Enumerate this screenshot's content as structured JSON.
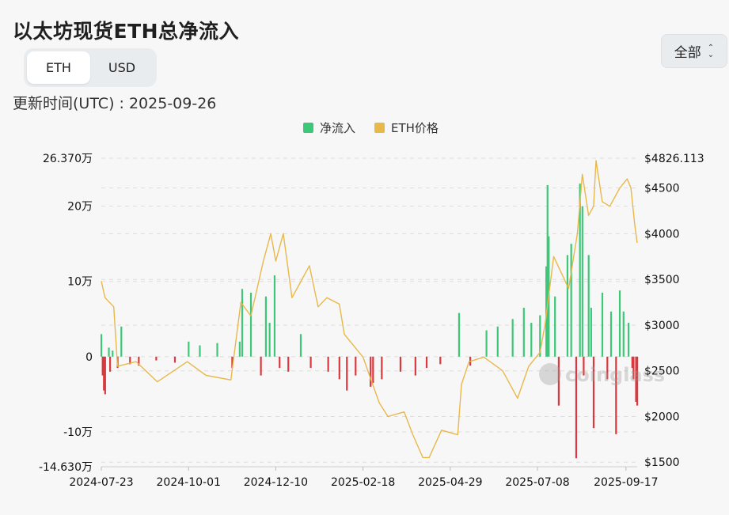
{
  "title": "以太坊现货ETH总净流入",
  "unit_toggle": {
    "options": [
      "ETH",
      "USD"
    ],
    "active": "ETH"
  },
  "range_select": {
    "value": "全部"
  },
  "updated": "更新时间(UTC) : 2025-09-26",
  "watermark": "coinglass",
  "colors": {
    "inflow": "#3cc878",
    "outflow": "#d9393f",
    "price": "#e8b84a",
    "legend_inflow": "#3cc878",
    "legend_price": "#e8b84a"
  },
  "chart_data": {
    "type": "bar+line",
    "legend": [
      "净流入",
      "ETH价格"
    ],
    "x_ticks": [
      "2024-07-23",
      "2024-10-01",
      "2024-12-10",
      "2025-02-18",
      "2025-04-29",
      "2025-07-08",
      "2025-09-17"
    ],
    "x_range": [
      "2024-07-23",
      "2025-09-26"
    ],
    "y_left": {
      "min": -146300,
      "max": 263700,
      "ticks": [
        {
          "value": 263700,
          "label": "26.370万"
        },
        {
          "value": 200000,
          "label": "20万"
        },
        {
          "value": 100000,
          "label": "10万"
        },
        {
          "value": 0,
          "label": "0"
        },
        {
          "value": -100000,
          "label": "-10万"
        },
        {
          "value": -146300,
          "label": "-14.630万"
        }
      ]
    },
    "y_right": {
      "min": 1450,
      "max": 4826.113,
      "ticks": [
        {
          "value": 4826.113,
          "label": "$4826.113"
        },
        {
          "value": 4500,
          "label": "$4500"
        },
        {
          "value": 4000,
          "label": "$4000"
        },
        {
          "value": 3500,
          "label": "$3500"
        },
        {
          "value": 3000,
          "label": "$3000"
        },
        {
          "value": 2500,
          "label": "$2500"
        },
        {
          "value": 2000,
          "label": "$2000"
        },
        {
          "value": 1500,
          "label": "$1500"
        }
      ]
    },
    "series": [
      {
        "name": "净流入",
        "type": "bar",
        "unit": "ETH",
        "dates": [
          "2024-07-23",
          "2024-07-24",
          "2024-07-25",
          "2024-07-26",
          "2024-07-29",
          "2024-07-30",
          "2024-08-01",
          "2024-08-05",
          "2024-08-08",
          "2024-08-15",
          "2024-08-22",
          "2024-09-05",
          "2024-09-20",
          "2024-10-01",
          "2024-10-10",
          "2024-10-24",
          "2024-11-05",
          "2024-11-11",
          "2024-11-13",
          "2024-11-20",
          "2024-11-28",
          "2024-12-02",
          "2024-12-05",
          "2024-12-09",
          "2024-12-13",
          "2024-12-20",
          "2024-12-30",
          "2025-01-07",
          "2025-01-21",
          "2025-01-30",
          "2025-02-05",
          "2025-02-12",
          "2025-02-24",
          "2025-02-26",
          "2025-03-05",
          "2025-03-20",
          "2025-04-01",
          "2025-04-10",
          "2025-04-21",
          "2025-05-06",
          "2025-05-15",
          "2025-05-28",
          "2025-06-06",
          "2025-06-18",
          "2025-06-27",
          "2025-07-03",
          "2025-07-10",
          "2025-07-15",
          "2025-07-16",
          "2025-07-17",
          "2025-07-22",
          "2025-07-25",
          "2025-08-01",
          "2025-08-04",
          "2025-08-08",
          "2025-08-11",
          "2025-08-13",
          "2025-08-14",
          "2025-08-18",
          "2025-08-20",
          "2025-08-22",
          "2025-08-29",
          "2025-09-02",
          "2025-09-05",
          "2025-09-09",
          "2025-09-12",
          "2025-09-15",
          "2025-09-19",
          "2025-09-22",
          "2025-09-23",
          "2025-09-25",
          "2025-09-26"
        ],
        "values": [
          30000,
          -25000,
          -45000,
          -50000,
          12000,
          -20000,
          8000,
          -15000,
          40000,
          -10000,
          -12000,
          -5000,
          -8000,
          20000,
          15000,
          18000,
          -15000,
          20000,
          90000,
          85000,
          -25000,
          80000,
          45000,
          108000,
          -15000,
          -20000,
          30000,
          -15000,
          -20000,
          -30000,
          -45000,
          -25000,
          -40000,
          -35000,
          -30000,
          -20000,
          -25000,
          -15000,
          -10000,
          58000,
          -12000,
          35000,
          40000,
          50000,
          65000,
          45000,
          55000,
          120000,
          228000,
          160000,
          80000,
          -65000,
          135000,
          150000,
          -135000,
          230000,
          200000,
          -25000,
          135000,
          65000,
          -95000,
          85000,
          -30000,
          60000,
          -103000,
          88000,
          60000,
          45000,
          -15000,
          -30000,
          -60000,
          -65000
        ]
      },
      {
        "name": "ETH价格",
        "type": "line",
        "unit": "USD",
        "dates": [
          "2024-07-23",
          "2024-07-26",
          "2024-08-02",
          "2024-08-05",
          "2024-08-20",
          "2024-09-06",
          "2024-09-30",
          "2024-10-15",
          "2024-11-04",
          "2024-11-12",
          "2024-11-20",
          "2024-11-30",
          "2024-12-06",
          "2024-12-10",
          "2024-12-16",
          "2024-12-23",
          "2025-01-06",
          "2025-01-13",
          "2025-01-20",
          "2025-01-30",
          "2025-02-03",
          "2025-02-18",
          "2025-03-03",
          "2025-03-10",
          "2025-03-23",
          "2025-03-30",
          "2025-04-07",
          "2025-04-12",
          "2025-04-22",
          "2025-05-05",
          "2025-05-08",
          "2025-05-14",
          "2025-05-26",
          "2025-06-10",
          "2025-06-22",
          "2025-07-01",
          "2025-07-10",
          "2025-07-14",
          "2025-07-21",
          "2025-08-02",
          "2025-08-09",
          "2025-08-13",
          "2025-08-18",
          "2025-08-22",
          "2025-08-24",
          "2025-08-29",
          "2025-09-04",
          "2025-09-12",
          "2025-09-18",
          "2025-09-21",
          "2025-09-24",
          "2025-09-26"
        ],
        "values": [
          3480,
          3300,
          3200,
          2550,
          2600,
          2380,
          2600,
          2450,
          2400,
          3250,
          3100,
          3700,
          4000,
          3700,
          4000,
          3300,
          3650,
          3200,
          3300,
          3230,
          2900,
          2650,
          2150,
          2000,
          2050,
          1800,
          1550,
          1550,
          1850,
          1800,
          2350,
          2600,
          2650,
          2500,
          2200,
          2550,
          2700,
          3000,
          3750,
          3400,
          4000,
          4650,
          4200,
          4300,
          4800,
          4350,
          4300,
          4500,
          4600,
          4500,
          4100,
          3900
        ]
      }
    ]
  }
}
